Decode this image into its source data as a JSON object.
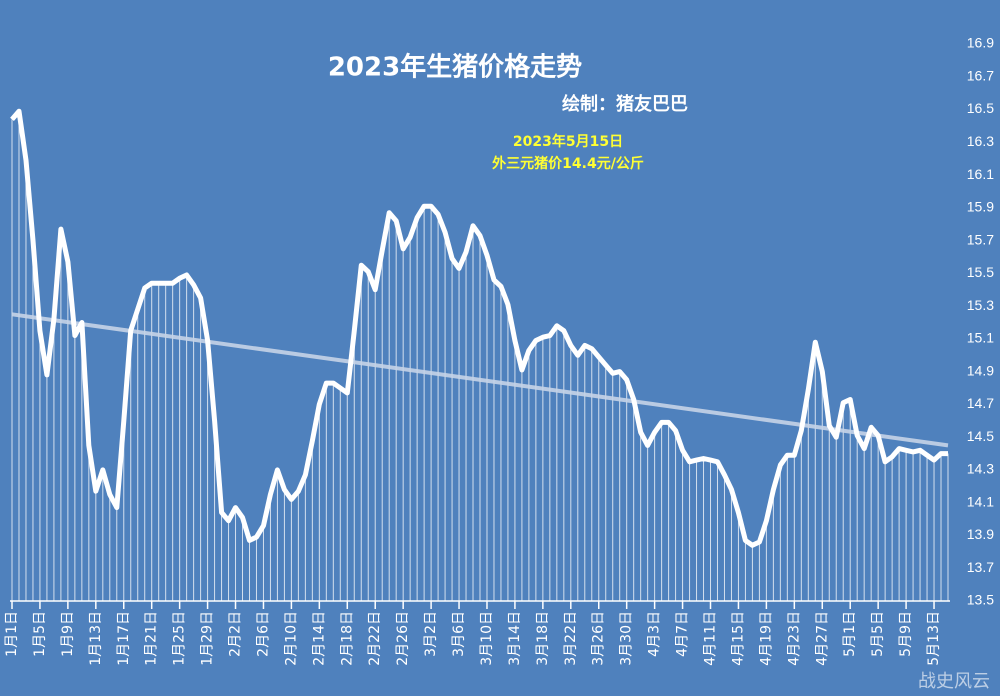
{
  "chart_data": {
    "type": "line",
    "title": "2023年生猪价格走势",
    "subtitle": "绘制：猪友巴巴",
    "annotation": [
      "2023年5月15日",
      "外三元猪价14.4元/公斤"
    ],
    "watermark": "战史风云",
    "categories": [
      "1月1日",
      null,
      null,
      null,
      "1月5日",
      null,
      null,
      null,
      "1月9日",
      null,
      null,
      null,
      "1月13日",
      null,
      null,
      null,
      "1月17日",
      null,
      null,
      null,
      "1月21日",
      null,
      null,
      null,
      "1月25日",
      null,
      null,
      null,
      "1月29日",
      null,
      null,
      null,
      "2月2日",
      null,
      null,
      null,
      "2月6日",
      null,
      null,
      null,
      "2月10日",
      null,
      null,
      null,
      "2月14日",
      null,
      null,
      null,
      "2月18日",
      null,
      null,
      null,
      "2月22日",
      null,
      null,
      null,
      "2月26日",
      null,
      null,
      null,
      "3月2日",
      null,
      null,
      null,
      "3月6日",
      null,
      null,
      null,
      "3月10日",
      null,
      null,
      null,
      "3月14日",
      null,
      null,
      null,
      "3月18日",
      null,
      null,
      null,
      "3月22日",
      null,
      null,
      null,
      "3月26日",
      null,
      null,
      null,
      "3月30日",
      null,
      null,
      null,
      "4月3日",
      null,
      null,
      null,
      "4月7日",
      null,
      null,
      null,
      "4月11日",
      null,
      null,
      null,
      "4月15日",
      null,
      null,
      null,
      "4月19日",
      null,
      null,
      null,
      "4月23日",
      null,
      null,
      null,
      "4月27日",
      null,
      null,
      null,
      "5月1日",
      null,
      null,
      null,
      "5月5日",
      null,
      null,
      null,
      "5月9日",
      null,
      null,
      null,
      "5月13日",
      null,
      null
    ],
    "series": [
      {
        "color": "#ffffff",
        "values": [
          16.44,
          16.49,
          16.19,
          15.7,
          15.15,
          14.88,
          15.22,
          15.77,
          15.57,
          15.12,
          15.2,
          14.45,
          14.17,
          14.3,
          14.15,
          14.07,
          14.6,
          15.15,
          15.28,
          15.41,
          15.44,
          15.44,
          15.44,
          15.44,
          15.47,
          15.49,
          15.43,
          15.35,
          15.09,
          14.6,
          14.04,
          13.99,
          14.07,
          14.01,
          13.87,
          13.89,
          13.96,
          14.15,
          14.3,
          14.18,
          14.12,
          14.17,
          14.27,
          14.48,
          14.7,
          14.83,
          14.83,
          14.8,
          14.77,
          15.15,
          15.55,
          15.51,
          15.4,
          15.64,
          15.87,
          15.82,
          15.65,
          15.72,
          15.84,
          15.91,
          15.91,
          15.86,
          15.75,
          15.59,
          15.53,
          15.63,
          15.79,
          15.73,
          15.61,
          15.46,
          15.42,
          15.31,
          15.09,
          14.91,
          15.03,
          15.09,
          15.11,
          15.12,
          15.18,
          15.15,
          15.06,
          15.0,
          15.06,
          15.04,
          14.99,
          14.94,
          14.89,
          14.9,
          14.85,
          14.73,
          14.53,
          14.45,
          14.53,
          14.59,
          14.59,
          14.54,
          14.42,
          14.35,
          14.36,
          14.37,
          14.36,
          14.35,
          14.27,
          14.18,
          14.04,
          13.87,
          13.84,
          13.86,
          13.99,
          14.18,
          14.33,
          14.39,
          14.39,
          14.54,
          14.79,
          15.08,
          14.9,
          14.57,
          14.5,
          14.71,
          14.73,
          14.51,
          14.43,
          14.56,
          14.51,
          14.35,
          14.38,
          14.43,
          14.42,
          14.41,
          14.42,
          14.39,
          14.36,
          14.4,
          14.4
        ]
      }
    ],
    "trendline": {
      "start": 15.25,
      "end": 14.45,
      "color": "#c6d4e8"
    },
    "ylim": [
      13.5,
      16.9
    ],
    "yticks": [
      13.5,
      13.7,
      13.9,
      14.1,
      14.3,
      14.5,
      14.7,
      14.9,
      15.1,
      15.3,
      15.5,
      15.7,
      15.9,
      16.1,
      16.3,
      16.5,
      16.7,
      16.9
    ],
    "background": "#4f81bd"
  }
}
